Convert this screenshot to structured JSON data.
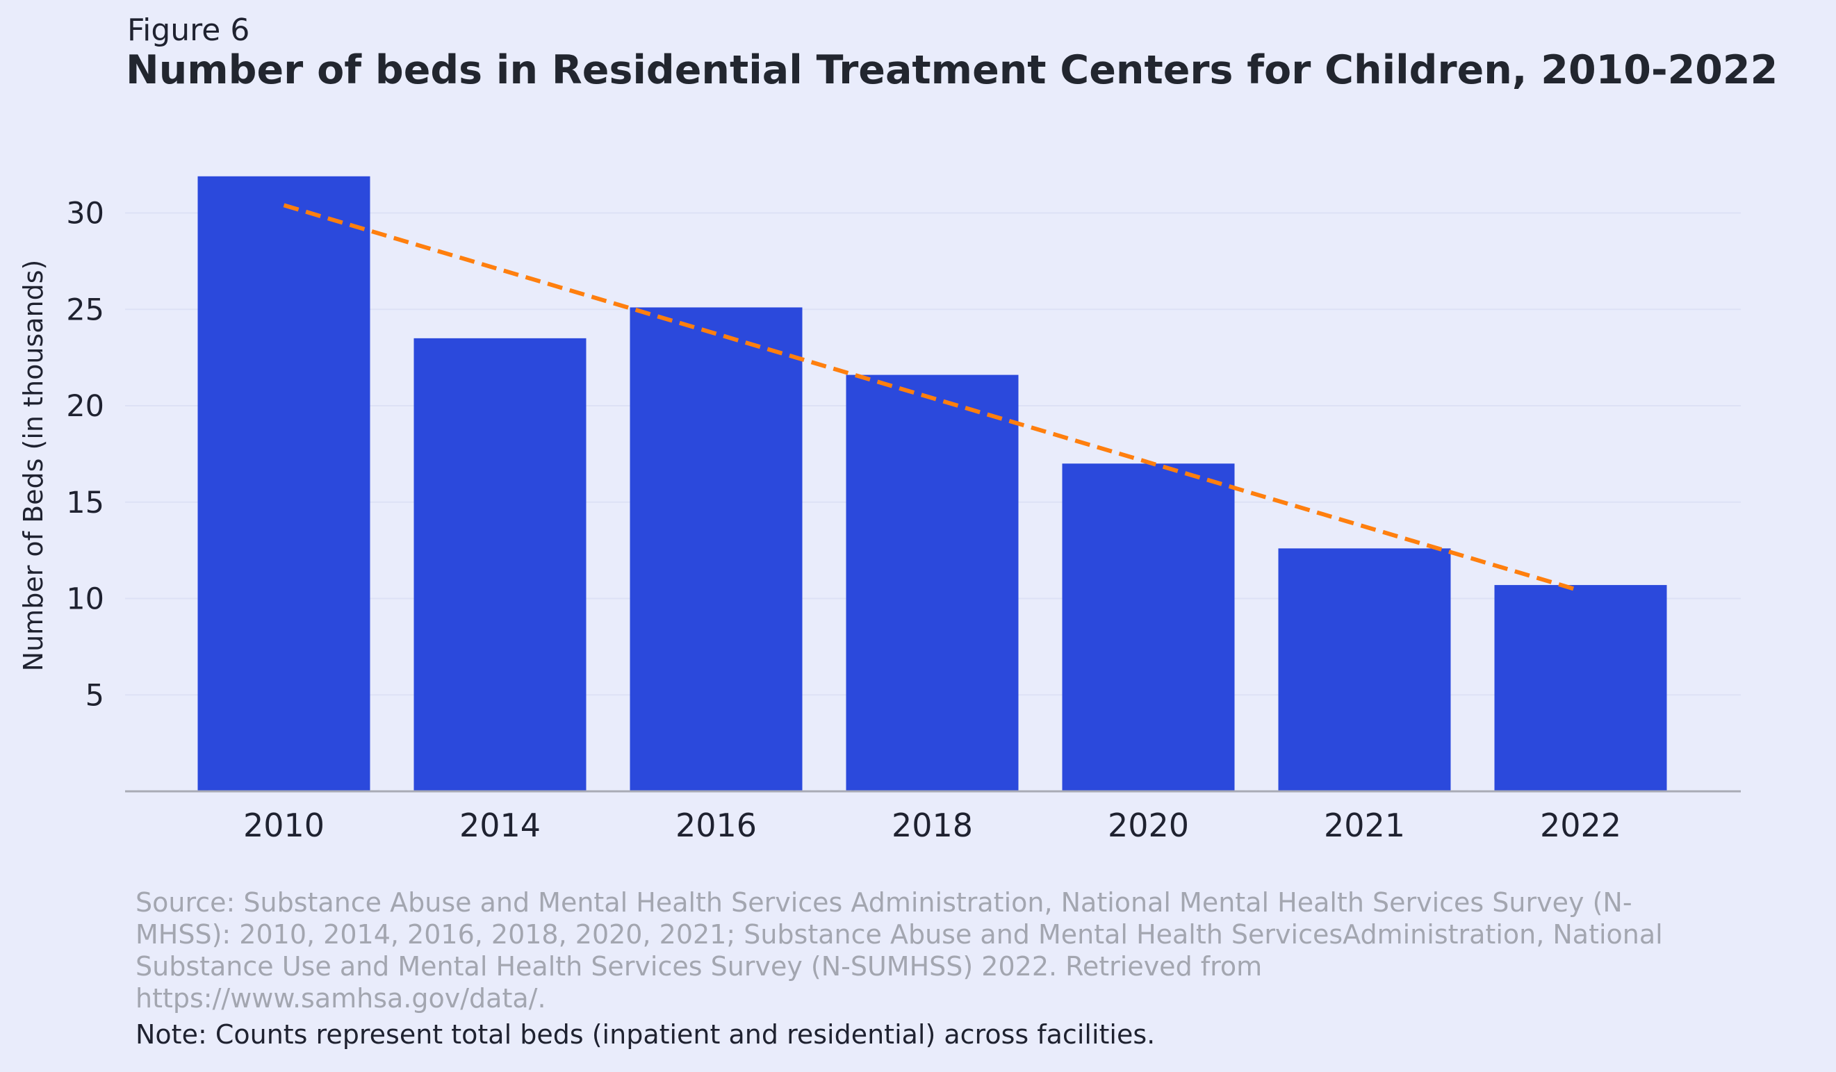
{
  "figure_label": "Figure 6",
  "source": "Source: Substance Abuse and Mental Health Services Administration, National Mental Health Services Survey (N-MHSS): 2010, 2014, 2016, 2018, 2020, 2021; Substance Abuse and Mental Health ServicesAdministration, National Substance Use and Mental Health Services Survey (N-SUMHSS) 2022. Retrieved from https://www.samhsa.gov/data/.",
  "note": "Note: Counts represent total beds (inpatient and residential) across facilities.",
  "colors": {
    "background": "#e9ecfb",
    "bar": "#2b49dc",
    "trend": "#ff7f0e",
    "grid": "#dde1f5",
    "axis": "#a9abb5",
    "text": "#1f2230"
  },
  "chart_data": {
    "type": "bar",
    "title": "Number of beds in Residential Treatment Centers for Children, 2010-2022",
    "xlabel": "",
    "ylabel": "Number of Beds (in thousands)",
    "categories": [
      "2010",
      "2014",
      "2016",
      "2018",
      "2020",
      "2021",
      "2022"
    ],
    "values": [
      31.9,
      23.5,
      25.1,
      21.6,
      17.0,
      12.6,
      10.7
    ],
    "trendline": {
      "style": "dashed",
      "start": 30.4,
      "end": 10.4
    },
    "yticks": [
      5,
      10,
      15,
      20,
      25,
      30
    ],
    "ylim": [
      0,
      33
    ],
    "grid": "horizontal",
    "legend": "none"
  }
}
